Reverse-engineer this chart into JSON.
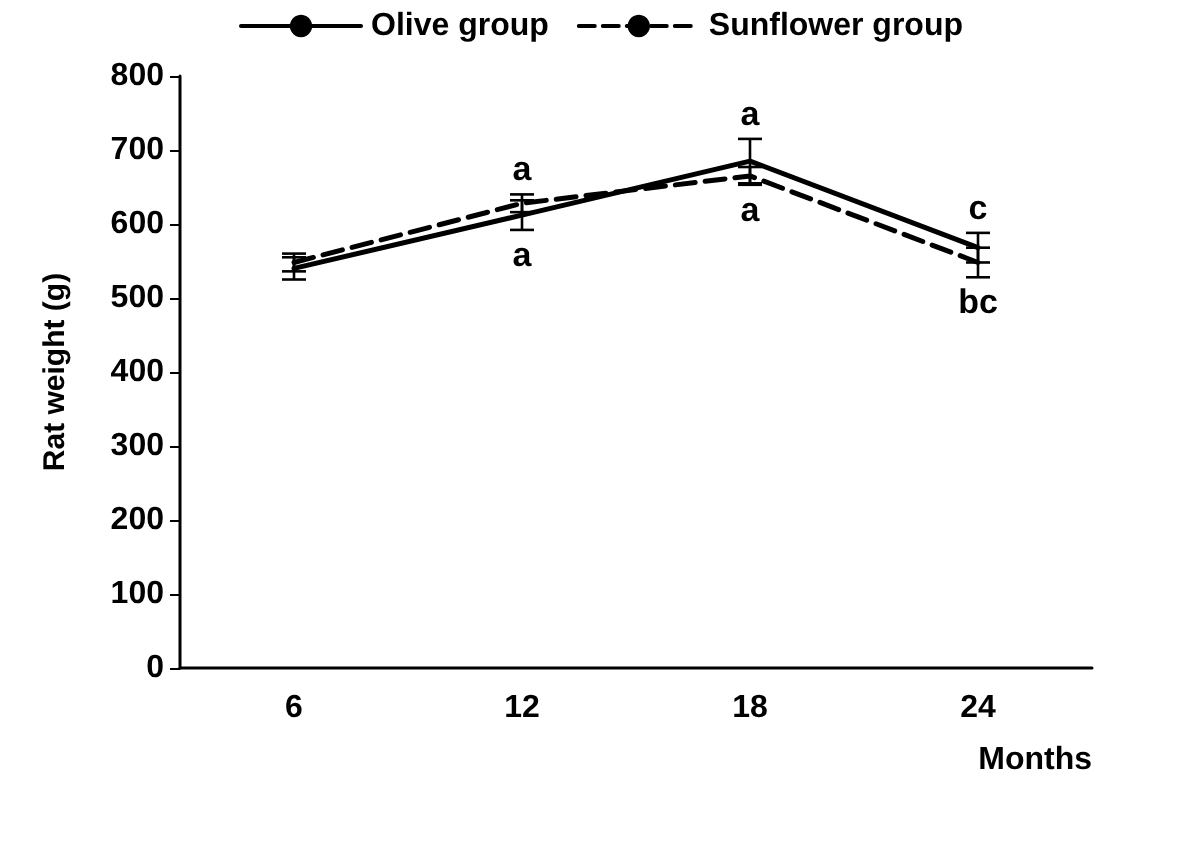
{
  "chart_data": {
    "type": "line",
    "xlabel": "Months",
    "ylabel": "Rat weight (g)",
    "categories": [
      "6",
      "12",
      "18",
      "24"
    ],
    "series": [
      {
        "name": "Olive group",
        "color": "#000000",
        "line_style": "solid",
        "values": [
          540,
          612,
          685,
          568
        ],
        "errors": [
          15,
          20,
          30,
          20
        ]
      },
      {
        "name": "Sunflower group",
        "color": "#000000",
        "line_style": "dashed",
        "values": [
          548,
          628,
          665,
          548
        ],
        "errors": [
          12,
          12,
          12,
          20
        ]
      }
    ],
    "annotations": [
      {
        "text": "a",
        "x": "12",
        "y": 628
      },
      {
        "text": "a",
        "x": "12",
        "y": 612
      },
      {
        "text": "a",
        "x": "18",
        "y": 685
      },
      {
        "text": "a",
        "x": "18",
        "y": 665
      },
      {
        "text": "c",
        "x": "24",
        "y": 568
      },
      {
        "text": "bc",
        "x": "24",
        "y": 548
      }
    ],
    "ylim": [
      0,
      800
    ],
    "yticks": [
      0,
      100,
      200,
      300,
      400,
      500,
      600,
      700,
      800
    ],
    "grid": false,
    "legend": "top",
    "marker": "none"
  }
}
